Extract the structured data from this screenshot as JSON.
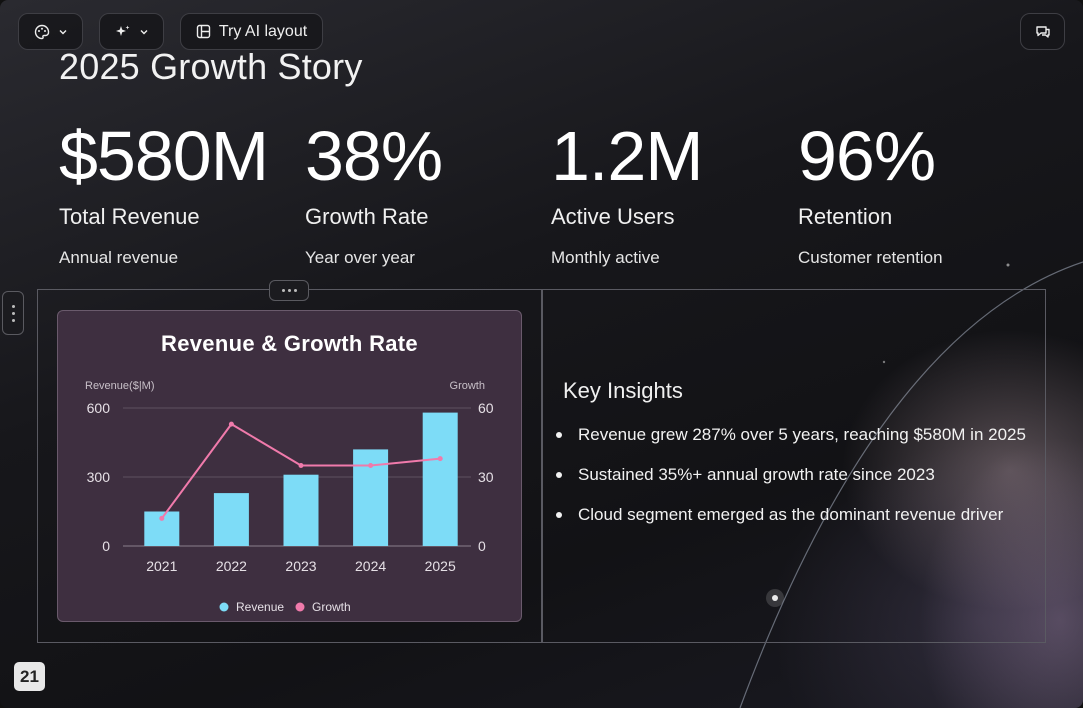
{
  "toolbar": {
    "theme_icon": "palette-icon",
    "ai_icon": "sparkle-icon",
    "try_ai_label": "Try AI layout",
    "try_ai_icon": "layout-icon",
    "comments_icon": "comments-icon"
  },
  "slide": {
    "title": "2025 Growth Story",
    "page_number": "21"
  },
  "stats": [
    {
      "value": "$580M",
      "label": "Total Revenue",
      "sub": "Annual revenue"
    },
    {
      "value": "38%",
      "label": "Growth Rate",
      "sub": "Year over year"
    },
    {
      "value": "1.2M",
      "label": "Active Users",
      "sub": "Monthly active"
    },
    {
      "value": "96%",
      "label": "Retention",
      "sub": "Customer retention"
    }
  ],
  "chart_data": {
    "type": "bar",
    "title": "Revenue & Growth Rate",
    "categories": [
      "2021",
      "2022",
      "2023",
      "2024",
      "2025"
    ],
    "ylabel": "Revenue($|M)",
    "y2label": "Growth",
    "ylim": [
      0,
      600
    ],
    "y2lim": [
      0,
      60
    ],
    "yticks": [
      "0",
      "300",
      "600"
    ],
    "y2ticks": [
      "0",
      "30",
      "60"
    ],
    "grid": true,
    "legend_position": "bottom",
    "series": [
      {
        "name": "Revenue",
        "type": "bar",
        "axis": "left",
        "color": "#7ddcf7",
        "values": [
          150,
          230,
          310,
          420,
          580
        ]
      },
      {
        "name": "Growth",
        "type": "line",
        "axis": "right",
        "color": "#f07aab",
        "values": [
          12,
          53,
          35,
          35,
          38
        ]
      }
    ]
  },
  "insights": {
    "title": "Key Insights",
    "items": [
      "Revenue grew 287% over 5 years, reaching $580M in 2025",
      "Sustained 35%+ annual growth rate since 2023",
      "Cloud segment emerged as the dominant revenue driver"
    ]
  }
}
